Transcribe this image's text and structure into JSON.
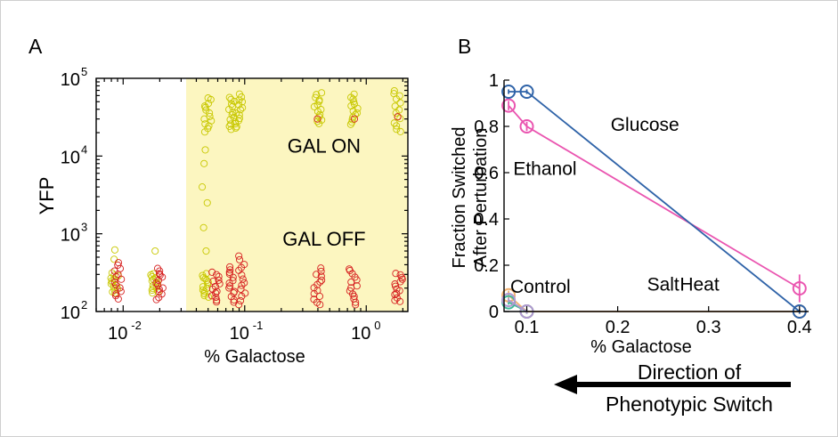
{
  "chart_data": [
    {
      "type": "scatter",
      "panel_label": "A",
      "xlabel": "% Galactose",
      "ylabel": "YFP",
      "xscale": "log",
      "yscale": "log",
      "xlim": [
        0.006,
        2.2
      ],
      "ylim": [
        100,
        100000
      ],
      "x_ticks": [
        0.01,
        0.1,
        1
      ],
      "x_tick_labels": {
        "base": [
          "10",
          "10",
          "10"
        ],
        "exp": [
          "-2",
          "-1",
          "0"
        ]
      },
      "y_ticks": [
        100,
        1000,
        10000,
        100000
      ],
      "y_tick_labels": {
        "base": [
          "10",
          "10",
          "10",
          "10"
        ],
        "exp": [
          "2",
          "3",
          "4",
          "5"
        ]
      },
      "shaded_region": {
        "x_from": 0.033,
        "x_to": 2.2,
        "color": "#fcf6c0"
      },
      "annotations": [
        {
          "text": "GAL ON",
          "x": 0.45,
          "y": 11000,
          "color": "#c8c800"
        },
        {
          "text": "GAL OFF",
          "x": 0.45,
          "y": 700,
          "color": "#d62020"
        }
      ],
      "series": [
        {
          "label": "GAL ON",
          "color": "#c8c800",
          "clusters": [
            {
              "x": 0.0085,
              "y_low": 170,
              "y_high": 320,
              "outliers": [
                470,
                620
              ]
            },
            {
              "x": 0.018,
              "y_low": 170,
              "y_high": 320,
              "outliers": [
                600
              ]
            },
            {
              "x": 0.047,
              "y_low": 150,
              "y_high": 320,
              "outliers": [
                600,
                1200,
                2500,
                4000,
                8000,
                12000
              ]
            },
            {
              "x": 0.05,
              "y_low": 20000,
              "y_high": 60000,
              "outliers": []
            },
            {
              "x": 0.08,
              "y_low": 22000,
              "y_high": 60000,
              "outliers": []
            },
            {
              "x": 0.09,
              "y_low": 22000,
              "y_high": 65000,
              "outliers": []
            },
            {
              "x": 0.4,
              "y_low": 25000,
              "y_high": 70000,
              "outliers": []
            },
            {
              "x": 0.8,
              "y_low": 25000,
              "y_high": 65000,
              "outliers": []
            },
            {
              "x": 1.8,
              "y_low": 20000,
              "y_high": 75000,
              "outliers": []
            }
          ]
        },
        {
          "label": "GAL OFF",
          "color": "#d62020",
          "clusters": [
            {
              "x": 0.009,
              "y_low": 140,
              "y_high": 450,
              "outliers": []
            },
            {
              "x": 0.02,
              "y_low": 140,
              "y_high": 380,
              "outliers": []
            },
            {
              "x": 0.058,
              "y_low": 130,
              "y_high": 330,
              "outliers": []
            },
            {
              "x": 0.08,
              "y_low": 130,
              "y_high": 400,
              "outliers": []
            },
            {
              "x": 0.095,
              "y_low": 120,
              "y_high": 550,
              "outliers": []
            },
            {
              "x": 0.4,
              "y_low": 120,
              "y_high": 380,
              "outliers": [
                30000
              ]
            },
            {
              "x": 0.78,
              "y_low": 120,
              "y_high": 380,
              "outliers": [
                30000
              ]
            },
            {
              "x": 1.85,
              "y_low": 130,
              "y_high": 330,
              "outliers": [
                32000
              ]
            }
          ]
        }
      ]
    },
    {
      "type": "line",
      "panel_label": "B",
      "xlabel": "% Galactose",
      "ylabel_lines": [
        "Fraction Switched",
        "After Perturbation"
      ],
      "xlim": [
        0.075,
        0.41
      ],
      "ylim": [
        0,
        1
      ],
      "x_ticks": [
        0.1,
        0.2,
        0.3,
        0.4
      ],
      "x_tick_labels": [
        "0.1",
        "0.2",
        "0.3",
        "0.4"
      ],
      "y_ticks": [
        0,
        0.2,
        0.4,
        0.6,
        0.8,
        1
      ],
      "y_tick_labels": [
        "0",
        "0.2",
        "0.4",
        "0.6",
        "0.8",
        "1"
      ],
      "series": [
        {
          "name": "Glucose",
          "color": "#2f63a8",
          "x": [
            0.08,
            0.1,
            0.4
          ],
          "y": [
            0.95,
            0.95,
            0
          ],
          "err": [
            0.01,
            0.01,
            0.01
          ],
          "label_x": 0.23,
          "label_y": 0.78
        },
        {
          "name": "Ethanol",
          "color": "#ea55b0",
          "x": [
            0.08,
            0.1,
            0.4
          ],
          "y": [
            0.89,
            0.8,
            0.1
          ],
          "err": [
            0.02,
            0.02,
            0.06
          ],
          "label_x": 0.12,
          "label_y": 0.59
        },
        {
          "name": "Salt",
          "color": "#f0b070",
          "x": [
            0.08,
            0.1,
            0.4
          ],
          "y": [
            0.07,
            0,
            0
          ],
          "err": [
            0.02,
            0.01,
            0.01
          ],
          "label_x": 0.25,
          "label_y": 0.09
        },
        {
          "name": "Control",
          "color": "#40b898",
          "x": [
            0.08,
            0.1
          ],
          "y": [
            0.04,
            0
          ],
          "err": [
            0.01,
            0.01
          ],
          "label_x": 0.115,
          "label_y": 0.08
        },
        {
          "name": "Heat",
          "color": "#b098d0",
          "x": [
            0.08,
            0.1
          ],
          "y": [
            0.05,
            0
          ],
          "err": [
            0.01,
            0.01
          ],
          "label_x": 0.29,
          "label_y": 0.09
        }
      ]
    }
  ],
  "arrow": {
    "line1": "Direction of",
    "line2": "Phenotypic Switch"
  }
}
